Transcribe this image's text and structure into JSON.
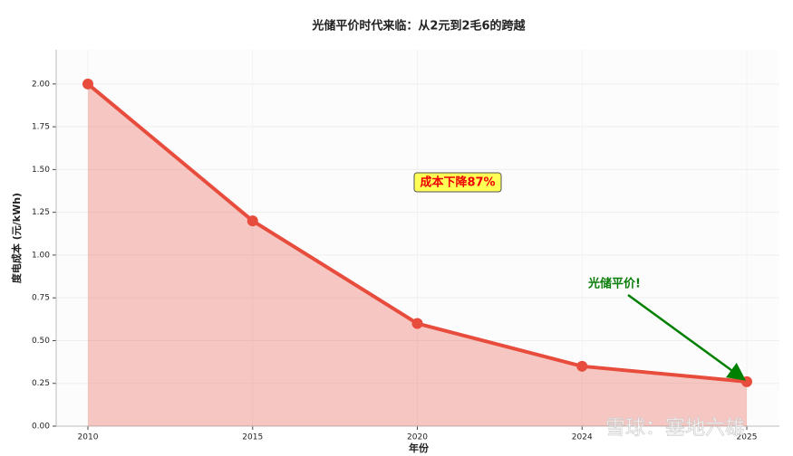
{
  "chart_data": {
    "type": "line",
    "title": "光储平价时代来临：从2元到2毛6的跨越",
    "x_label": "年份",
    "y_label": "度电成本 (元/kWh)",
    "categories": [
      "2010",
      "2015",
      "2020",
      "2024",
      "2025"
    ],
    "series": [
      {
        "name": "度电成本",
        "color": "#e74c3c",
        "values": [
          2.0,
          1.2,
          0.6,
          0.35,
          0.26
        ]
      }
    ],
    "fill": true,
    "ylim": [
      0,
      2.2
    ],
    "yticks": [
      {
        "value": 0,
        "label": "0.00"
      },
      {
        "value": 0.25,
        "label": "0.25"
      },
      {
        "value": 0.5,
        "label": "0.50"
      },
      {
        "value": 0.75,
        "label": "0.75"
      },
      {
        "value": 1.0,
        "label": "1.00"
      },
      {
        "value": 1.25,
        "label": "1.25"
      },
      {
        "value": 1.5,
        "label": "1.50"
      },
      {
        "value": 1.75,
        "label": "1.75"
      },
      {
        "value": 2.0,
        "label": "2.00"
      }
    ],
    "grid": true,
    "annotations": [
      {
        "text": "成本下降87%"
      },
      {
        "text": "光储平价!"
      }
    ],
    "watermark": "雪球：塞地六雄"
  }
}
